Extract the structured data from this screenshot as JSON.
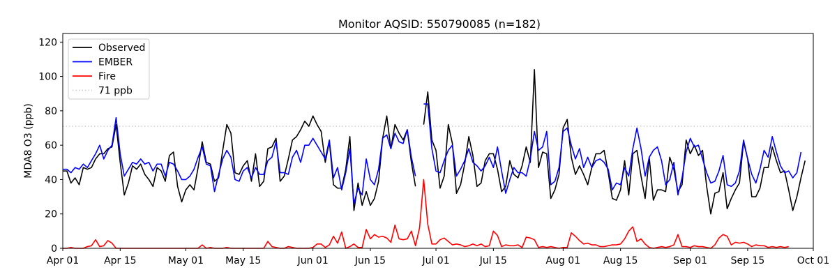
{
  "chart_data": {
    "type": "line",
    "title": "Monitor AQSID: 550790085 (n=182)",
    "xlabel": "",
    "ylabel": "MDA8 O3 (ppb)",
    "xlim": [
      "2023-04-01",
      "2023-10-01"
    ],
    "ylim": [
      0,
      125
    ],
    "x_ticks": [
      {
        "date": "2023-04-01",
        "label": "Apr 01"
      },
      {
        "date": "2023-04-15",
        "label": "Apr 15"
      },
      {
        "date": "2023-05-01",
        "label": "May 01"
      },
      {
        "date": "2023-05-15",
        "label": "May 15"
      },
      {
        "date": "2023-06-01",
        "label": "Jun 01"
      },
      {
        "date": "2023-06-15",
        "label": "Jun 15"
      },
      {
        "date": "2023-07-01",
        "label": "Jul 01"
      },
      {
        "date": "2023-07-15",
        "label": "Jul 15"
      },
      {
        "date": "2023-08-01",
        "label": "Aug 01"
      },
      {
        "date": "2023-08-15",
        "label": "Aug 15"
      },
      {
        "date": "2023-09-01",
        "label": "Sep 01"
      },
      {
        "date": "2023-09-15",
        "label": "Sep 15"
      },
      {
        "date": "2023-10-01",
        "label": "Oct 01"
      }
    ],
    "y_ticks": [
      0,
      20,
      40,
      60,
      80,
      100,
      120
    ],
    "grid": false,
    "legend_position": "top-left",
    "x_start": "2023-04-01",
    "reference_line": {
      "value": 71,
      "label": "71 ppb",
      "color": "#cccccc",
      "style": "dotted"
    },
    "series": [
      {
        "name": "Observed",
        "color": "#000000",
        "values": [
          45,
          45,
          38,
          41,
          37,
          47,
          46,
          47,
          52,
          55,
          55,
          58,
          59,
          72,
          50,
          31,
          38,
          48,
          46,
          49,
          43,
          40,
          36,
          47,
          45,
          39,
          54,
          56,
          36,
          27,
          34,
          37,
          34,
          47,
          62,
          50,
          49,
          39,
          41,
          57,
          72,
          67,
          44,
          43,
          48,
          51,
          39,
          55,
          36,
          39,
          58,
          59,
          64,
          39,
          42,
          52,
          63,
          65,
          69,
          74,
          71,
          77,
          72,
          68,
          50,
          62,
          37,
          35,
          35,
          46,
          65,
          22,
          38,
          25,
          33,
          25,
          29,
          39,
          64,
          77,
          58,
          72,
          67,
          63,
          69,
          50,
          36,
          null,
          72,
          91,
          63,
          57,
          35,
          42,
          72,
          61,
          32,
          37,
          49,
          65,
          54,
          36,
          38,
          51,
          55,
          55,
          46,
          33,
          36,
          51,
          43,
          41,
          48,
          59,
          50,
          104,
          47,
          56,
          55,
          29,
          34,
          43,
          70,
          75,
          53,
          43,
          48,
          43,
          37,
          47,
          55,
          55,
          57,
          44,
          29,
          28,
          34,
          51,
          31,
          55,
          57,
          42,
          29,
          53,
          28,
          34,
          34,
          33,
          53,
          46,
          33,
          37,
          63,
          55,
          60,
          54,
          57,
          36,
          20,
          32,
          33,
          44,
          23,
          29,
          34,
          38,
          62,
          52,
          30,
          30,
          35,
          47,
          47,
          59,
          51,
          44,
          45,
          34,
          22,
          30,
          41,
          51
        ]
      },
      {
        "name": "EMBER",
        "color": "#0000ff",
        "values": [
          46,
          46,
          44,
          47,
          46,
          49,
          47,
          51,
          55,
          60,
          52,
          57,
          60,
          76,
          55,
          42,
          46,
          50,
          49,
          52,
          49,
          50,
          45,
          49,
          49,
          42,
          50,
          49,
          45,
          40,
          40,
          42,
          46,
          53,
          59,
          49,
          48,
          33,
          43,
          52,
          57,
          53,
          40,
          39,
          45,
          47,
          41,
          47,
          43,
          43,
          51,
          53,
          62,
          44,
          44,
          43,
          53,
          57,
          50,
          60,
          60,
          64,
          60,
          56,
          52,
          63,
          41,
          47,
          34,
          44,
          58,
          26,
          35,
          31,
          52,
          40,
          37,
          46,
          64,
          66,
          58,
          67,
          62,
          61,
          69,
          53,
          42,
          null,
          84,
          84,
          58,
          45,
          44,
          51,
          57,
          60,
          42,
          46,
          51,
          58,
          50,
          48,
          45,
          48,
          53,
          47,
          59,
          45,
          32,
          40,
          47,
          44,
          44,
          42,
          52,
          68,
          57,
          59,
          68,
          37,
          39,
          47,
          68,
          70,
          60,
          52,
          58,
          47,
          53,
          47,
          51,
          52,
          50,
          46,
          34,
          38,
          37,
          47,
          42,
          58,
          70,
          58,
          42,
          53,
          57,
          59,
          51,
          37,
          40,
          50,
          31,
          41,
          56,
          64,
          59,
          60,
          52,
          44,
          38,
          39,
          45,
          54,
          37,
          36,
          38,
          45,
          63,
          52,
          43,
          38,
          46,
          57,
          53,
          65,
          56,
          48,
          44,
          45,
          41,
          44,
          56
        ]
      },
      {
        "name": "Fire",
        "color": "#ff0000",
        "values": [
          0,
          0,
          0.5,
          0,
          0,
          0,
          1,
          1.5,
          5,
          1,
          1.5,
          4.5,
          3,
          0,
          0,
          0,
          0,
          0,
          0,
          0,
          0,
          0,
          0,
          0,
          0,
          0,
          0,
          0,
          0,
          0,
          0,
          0,
          0,
          0,
          2,
          0,
          0.5,
          0,
          0,
          0,
          0.5,
          0,
          0,
          0,
          0,
          0,
          0,
          0,
          0,
          0,
          4,
          1,
          0.5,
          0,
          0,
          1,
          0.5,
          0,
          0,
          0,
          0,
          0.5,
          2.5,
          2.5,
          0.5,
          2,
          7,
          3,
          9.5,
          0,
          1,
          2.5,
          0.5,
          0.5,
          11,
          5.5,
          8,
          6.5,
          7,
          6,
          3.5,
          13.5,
          5.5,
          5,
          5.5,
          10,
          1.5,
          12,
          null,
          null,
          null,
          null,
          null,
          null,
          null,
          null,
          null,
          null,
          null,
          null,
          null,
          null,
          null,
          null,
          null,
          null,
          null,
          null,
          null,
          null,
          null,
          null,
          null,
          null,
          null,
          null,
          null,
          null,
          null,
          null,
          null,
          null,
          null,
          null,
          null,
          null,
          null,
          null,
          null,
          null,
          null,
          null,
          null,
          null,
          null,
          null,
          null,
          null,
          null,
          null,
          null,
          null,
          null,
          null,
          null,
          null,
          null,
          null,
          null,
          null,
          null,
          null,
          null,
          null,
          null,
          null,
          null,
          null,
          null,
          null,
          null,
          null,
          null,
          null,
          null,
          null,
          null,
          null,
          null,
          null,
          null,
          null,
          null,
          null,
          null,
          null,
          null,
          null
        ],
        "values_after_gap": [
          [
            88,
            40
          ],
          [
            89,
            14
          ],
          [
            90,
            2.5
          ],
          [
            91,
            2.5
          ],
          [
            92,
            5
          ],
          [
            93,
            6
          ],
          [
            94,
            4
          ],
          [
            95,
            2
          ],
          [
            96,
            2.5
          ],
          [
            97,
            2
          ],
          [
            98,
            1
          ],
          [
            99,
            1.5
          ],
          [
            100,
            2.5
          ],
          [
            101,
            1.5
          ],
          [
            102,
            2.5
          ],
          [
            103,
            1
          ],
          [
            104,
            1.5
          ],
          [
            105,
            10
          ],
          [
            106,
            7.5
          ],
          [
            107,
            1
          ],
          [
            108,
            2
          ],
          [
            109,
            1.5
          ],
          [
            110,
            1.5
          ],
          [
            111,
            2
          ],
          [
            112,
            0.5
          ],
          [
            113,
            6.5
          ],
          [
            114,
            6
          ],
          [
            115,
            5
          ],
          [
            116,
            0.5
          ],
          [
            117,
            1
          ],
          [
            118,
            0.5
          ],
          [
            119,
            1
          ],
          [
            120,
            0.5
          ],
          [
            121,
            0
          ],
          [
            122,
            0.5
          ],
          [
            123,
            0.5
          ],
          [
            124,
            9
          ],
          [
            125,
            7
          ],
          [
            126,
            4.5
          ],
          [
            127,
            2.5
          ],
          [
            128,
            3
          ],
          [
            129,
            2
          ],
          [
            130,
            2
          ],
          [
            131,
            1
          ],
          [
            132,
            1
          ],
          [
            133,
            1.5
          ],
          [
            134,
            2
          ],
          [
            135,
            2
          ],
          [
            136,
            2.5
          ],
          [
            137,
            5.5
          ],
          [
            138,
            10
          ],
          [
            139,
            12.5
          ],
          [
            140,
            4
          ],
          [
            141,
            5.5
          ],
          [
            142,
            2.5
          ],
          [
            143,
            0.5
          ],
          [
            144,
            0
          ],
          [
            145,
            0.5
          ],
          [
            146,
            1
          ],
          [
            147,
            0.5
          ],
          [
            148,
            1
          ],
          [
            149,
            2
          ],
          [
            150,
            8
          ],
          [
            151,
            1
          ],
          [
            152,
            1
          ],
          [
            153,
            0.5
          ],
          [
            154,
            1.5
          ],
          [
            155,
            1
          ],
          [
            156,
            1
          ],
          [
            157,
            0.5
          ],
          [
            158,
            0
          ],
          [
            159,
            2
          ],
          [
            160,
            6
          ],
          [
            161,
            8
          ],
          [
            162,
            7
          ],
          [
            163,
            2
          ],
          [
            164,
            3.5
          ],
          [
            165,
            3
          ],
          [
            166,
            3.5
          ],
          [
            167,
            2.5
          ],
          [
            168,
            1
          ],
          [
            169,
            2
          ],
          [
            170,
            1.5
          ],
          [
            171,
            1.5
          ],
          [
            172,
            0.5
          ],
          [
            173,
            1
          ],
          [
            174,
            0.5
          ],
          [
            175,
            1
          ],
          [
            176,
            0.5
          ],
          [
            177,
            1
          ],
          [
            178,
            0.5
          ],
          [
            179,
            1.5
          ],
          [
            180,
            1
          ],
          [
            181,
            0.5
          ]
        ]
      }
    ]
  }
}
